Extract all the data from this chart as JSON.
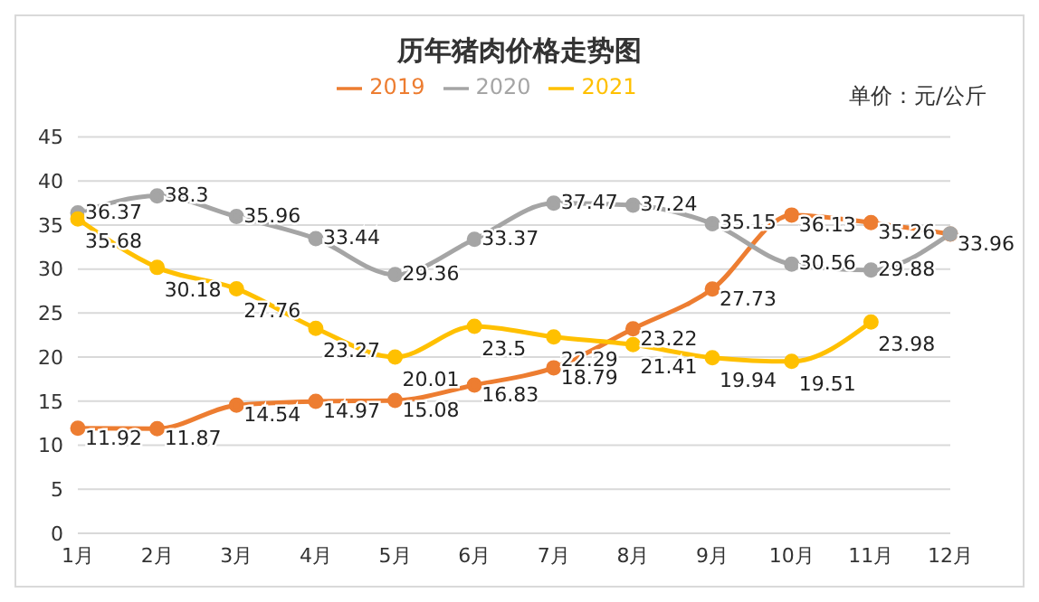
{
  "chart_data": {
    "type": "line",
    "title": "历年猪肉价格走势图",
    "annotations": [
      "单价：元/公斤"
    ],
    "categories": [
      "1月",
      "2月",
      "3月",
      "4月",
      "5月",
      "6月",
      "7月",
      "8月",
      "9月",
      "10月",
      "11月",
      "12月"
    ],
    "series": [
      {
        "name": "2019",
        "color": "#ed7d31",
        "values": [
          11.92,
          11.87,
          14.54,
          14.97,
          15.08,
          16.83,
          18.79,
          23.22,
          27.73,
          36.13,
          35.26,
          33.96
        ],
        "value_labels": [
          "11.92",
          "11.87",
          "14.54",
          "14.97",
          "15.08",
          "16.83",
          "18.79",
          "23.22",
          "27.73",
          "36.13",
          "35.26",
          "33.96"
        ]
      },
      {
        "name": "2020",
        "color": "#a5a5a5",
        "values": [
          36.37,
          38.3,
          35.96,
          33.44,
          29.36,
          33.37,
          37.47,
          37.24,
          35.15,
          30.56,
          29.88,
          34
        ],
        "value_labels": [
          "36.37",
          "38.3",
          "35.96",
          "33.44",
          "29.36",
          "33.37",
          "37.47",
          "37.24",
          "35.15",
          "30.56",
          "29.88",
          null
        ]
      },
      {
        "name": "2021",
        "color": "#ffc000",
        "values": [
          35.68,
          30.18,
          27.76,
          23.27,
          20.01,
          23.5,
          22.29,
          21.41,
          19.94,
          19.51,
          23.98,
          null
        ],
        "value_labels": [
          "35.68",
          "30.18",
          "27.76",
          "23.27",
          "20.01",
          "23.5",
          "22.29",
          "21.41",
          "19.94",
          "19.51",
          "23.98",
          null
        ]
      }
    ],
    "ylim": [
      0,
      45
    ],
    "yticks": [
      0,
      5,
      10,
      15,
      20,
      25,
      30,
      35,
      40,
      45
    ],
    "grid": "y",
    "legend": "top",
    "marker": "circle"
  }
}
